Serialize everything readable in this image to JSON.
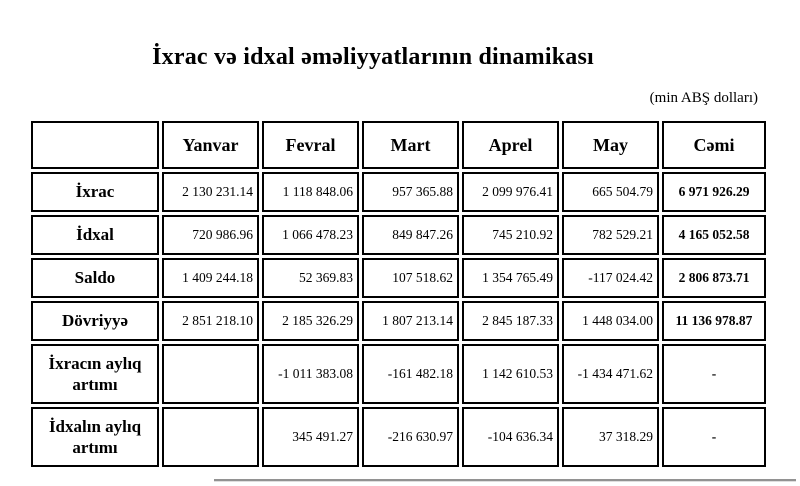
{
  "page": {
    "title": "İxrac və idxal əməliyyatlarının dinamikası",
    "unit_note": "(min ABŞ dolları)"
  },
  "table": {
    "columns": [
      "",
      "Yanvar",
      "Fevral",
      "Mart",
      "Aprel",
      "May",
      "Cəmi"
    ],
    "rows": [
      {
        "label": "İxrac",
        "values": [
          "2 130 231.14",
          "1 118 848.06",
          "957 365.88",
          "2 099 976.41",
          "665 504.79"
        ],
        "total": "6 971 926.29"
      },
      {
        "label": "İdxal",
        "values": [
          "720 986.96",
          "1 066 478.23",
          "849 847.26",
          "745 210.92",
          "782 529.21"
        ],
        "total": "4 165 052.58"
      },
      {
        "label": "Saldo",
        "values": [
          "1 409 244.18",
          "52 369.83",
          "107 518.62",
          "1 354 765.49",
          "-117 024.42"
        ],
        "total": "2 806 873.71"
      },
      {
        "label": "Dövriyyə",
        "values": [
          "2 851 218.10",
          "2 185 326.29",
          "1 807 213.14",
          "2 845 187.33",
          "1 448 034.00"
        ],
        "total": "11 136 978.87"
      },
      {
        "label": "İxracın aylıq artımı",
        "values": [
          "",
          "-1 011 383.08",
          "-161 482.18",
          "1 142 610.53",
          "-1 434 471.62"
        ],
        "total": "-"
      },
      {
        "label": "İdxalın aylıq artımı",
        "values": [
          "",
          "345 491.27",
          "-216 630.97",
          "-104 636.34",
          "37 318.29"
        ],
        "total": "-"
      }
    ]
  },
  "colors": {
    "cell_fill": "#f0f0f0",
    "border": "#000000",
    "divider": "#929292"
  }
}
